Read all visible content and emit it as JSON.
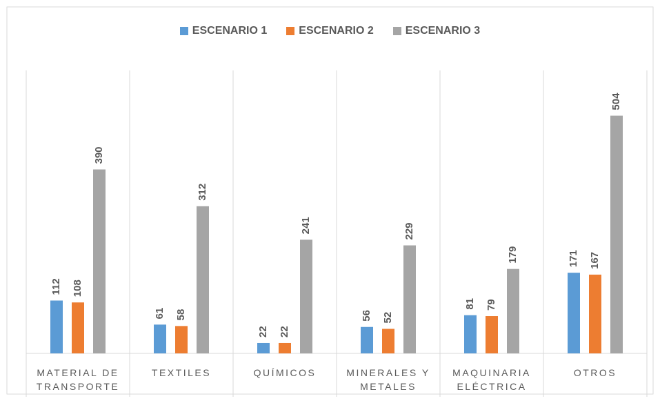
{
  "chart_data": {
    "type": "bar",
    "categories": [
      "MATERIAL DE TRANSPORTE",
      "TEXTILES",
      "QUÍMICOS",
      "MINERALES Y METALES",
      "MAQUINARIA ELÉCTRICA",
      "OTROS"
    ],
    "series": [
      {
        "name": "ESCENARIO 1",
        "color": "#5b9bd5",
        "values": [
          112,
          61,
          22,
          56,
          81,
          171
        ]
      },
      {
        "name": "ESCENARIO 2",
        "color": "#ed7d31",
        "values": [
          108,
          58,
          22,
          52,
          79,
          167
        ]
      },
      {
        "name": "ESCENARIO 3",
        "color": "#a5a5a5",
        "values": [
          390,
          312,
          241,
          229,
          179,
          504
        ]
      }
    ],
    "ylim": [
      0,
      600
    ],
    "legend": "top"
  }
}
